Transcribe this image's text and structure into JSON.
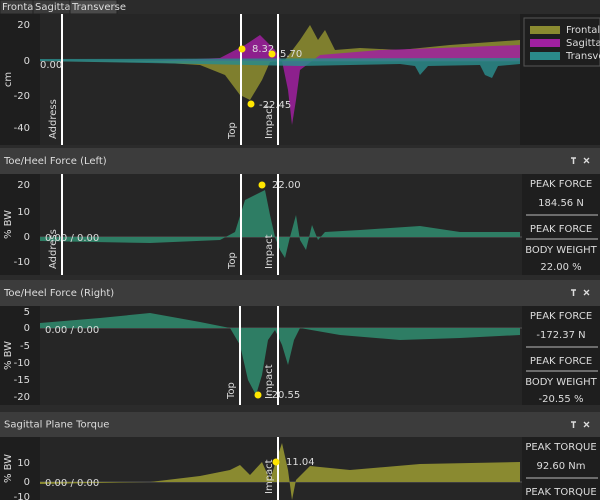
{
  "tabs": [
    "Frontal",
    "Sagittal",
    "Transverse"
  ],
  "panels": [
    {
      "axis_label": "cm",
      "yticks": [
        "20",
        "0",
        "-20",
        "-40"
      ],
      "events": [
        "Address",
        "Top",
        "Impact"
      ],
      "legend": [
        "Frontal",
        "Sagittal",
        "Transverse"
      ],
      "annotations": [
        "8.32",
        "5.70",
        "-22.45",
        "0.00"
      ]
    },
    {
      "title": "Toe/Heel Force (Left)",
      "axis_label": "% BW",
      "yticks": [
        "20",
        "10",
        "0",
        "-10"
      ],
      "events": [
        "Address",
        "Top",
        "Impact"
      ],
      "annotations": [
        "22.00",
        "0.00 / 0.00"
      ],
      "info": [
        "PEAK FORCE",
        "184.56 N",
        "PEAK FORCE",
        "BODY WEIGHT",
        "22.00  %"
      ]
    },
    {
      "title": "Toe/Heel Force (Right)",
      "axis_label": "% BW",
      "yticks": [
        "5",
        "0",
        "-5",
        "-10",
        "-15",
        "-20"
      ],
      "events": [
        "Top",
        "Impact"
      ],
      "annotations": [
        "-20.55",
        "0.00 / 0.00"
      ],
      "info": [
        "PEAK FORCE",
        "-172.37 N",
        "PEAK FORCE",
        "BODY WEIGHT",
        "-20.55  %"
      ]
    },
    {
      "title": "Sagittal Plane Torque",
      "axis_label": "% BW",
      "yticks": [
        "10",
        "0",
        "-10"
      ],
      "events": [
        "Impact"
      ],
      "annotations": [
        "11.04",
        "0.00 / 0.00"
      ],
      "info": [
        "PEAK TORQUE",
        "92.60 Nm",
        "PEAK TORQUE"
      ]
    }
  ]
}
